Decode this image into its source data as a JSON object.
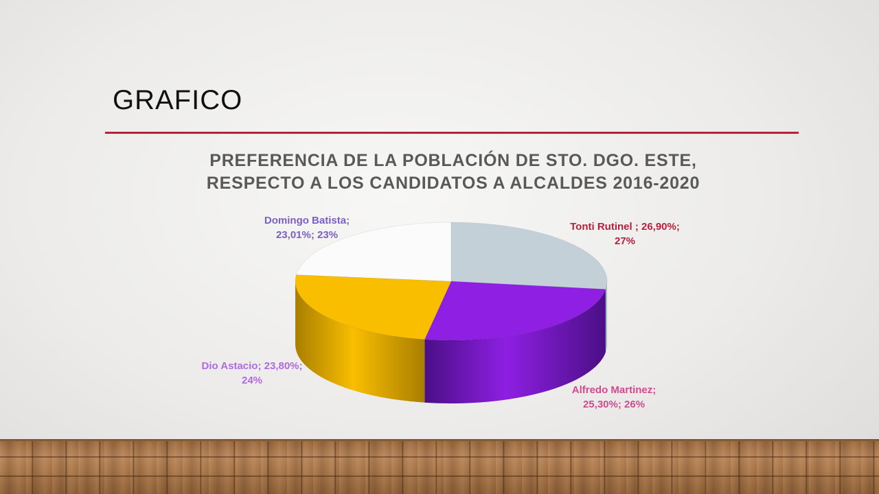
{
  "slide": {
    "title": "GRAFICO"
  },
  "chart_data": {
    "type": "pie",
    "title_lines": [
      "PREFERENCIA DE LA POBLACIÓN DE STO. DGO. ESTE,",
      "RESPECTO A LOS CANDIDATOS A ALCALDES 2016-2020"
    ],
    "slices": [
      {
        "name": "Tonti Rutinel",
        "value": 26.9,
        "label_lines": [
          "Tonti Rutinel ; 26,90%;",
          "27%"
        ],
        "color": "#c3d0d8",
        "dark": "#8fa0ab",
        "label_color": "#b5213c"
      },
      {
        "name": "Alfredo Martinez",
        "value": 25.3,
        "label_lines": [
          "Alfredo Martinez;",
          "25,30%; 26%"
        ],
        "color": "#8e1fe3",
        "dark": "#4b0f86",
        "label_color": "#d04a8e"
      },
      {
        "name": "Dio Astacio",
        "value": 23.8,
        "label_lines": [
          "Dio Astacio; 23,80%;",
          "24%"
        ],
        "color": "#f9be00",
        "dark": "#a97e00",
        "label_color": "#b06ae0"
      },
      {
        "name": "Domingo Batista",
        "value": 23.01,
        "label_lines": [
          "Domingo Batista;",
          "23,01%; 23%"
        ],
        "color": "#fbfbfb",
        "dark": "#cfcfcf",
        "label_color": "#7b5fc0"
      }
    ]
  }
}
